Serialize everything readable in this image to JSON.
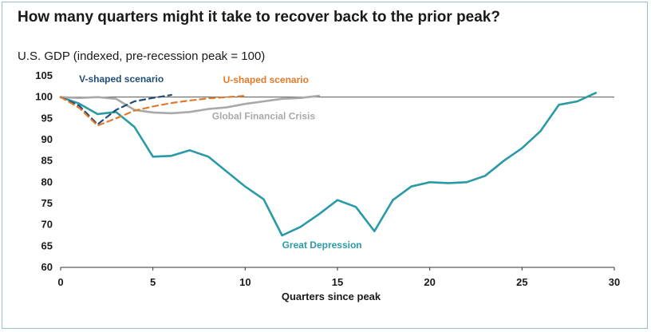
{
  "title": "How many quarters might it take to recover back to the prior peak?",
  "subtitle": "U.S. GDP (indexed, pre-recession peak = 100)",
  "chart_data": {
    "type": "line",
    "xlabel": "Quarters since peak",
    "ylabel": "",
    "xlim": [
      0,
      30
    ],
    "ylim": [
      60,
      105
    ],
    "x_ticks": [
      0,
      5,
      10,
      15,
      20,
      25,
      30
    ],
    "y_ticks": [
      60,
      65,
      70,
      75,
      80,
      85,
      90,
      95,
      100,
      105
    ],
    "reference_line": 100,
    "grid": false,
    "series": [
      {
        "name": "Great Depression",
        "color": "#2a9aa6",
        "style": "solid",
        "x": [
          0,
          1,
          2,
          3,
          4,
          5,
          6,
          7,
          8,
          9,
          10,
          11,
          12,
          13,
          14,
          15,
          16,
          17,
          18,
          19,
          20,
          21,
          22,
          23,
          24,
          25,
          26,
          27,
          28,
          29
        ],
        "y": [
          100,
          98.5,
          96,
          96.5,
          93,
          86,
          86.2,
          87.5,
          86,
          82.5,
          79,
          76,
          67.5,
          69.5,
          72.5,
          75.8,
          74.2,
          68.5,
          75.8,
          79,
          80,
          79.8,
          80,
          81.5,
          85,
          88,
          92,
          98.2,
          99,
          101
        ]
      },
      {
        "name": "Global Financial Crisis",
        "color": "#a9a9a9",
        "style": "solid",
        "x": [
          0,
          1,
          2,
          3,
          4,
          5,
          6,
          7,
          8,
          9,
          10,
          11,
          12,
          13,
          14
        ],
        "y": [
          100,
          99.8,
          100,
          99.6,
          97,
          96.4,
          96.2,
          96.5,
          97.2,
          97.6,
          98.4,
          99,
          99.6,
          99.8,
          100.3
        ]
      },
      {
        "name": "V-shaped scenario",
        "color": "#1f4e79",
        "style": "dashed",
        "x": [
          0,
          1,
          2,
          3,
          4,
          5,
          6
        ],
        "y": [
          100,
          98,
          93.6,
          97,
          99,
          99.8,
          100.5
        ]
      },
      {
        "name": "U-shaped scenario",
        "color": "#e07a2a",
        "style": "dashed",
        "x": [
          0,
          1,
          2,
          3,
          4,
          5,
          6,
          7,
          8,
          9,
          10
        ],
        "y": [
          100,
          97.5,
          93.3,
          95,
          96.8,
          97.8,
          98.6,
          99.2,
          99.7,
          100,
          100.3
        ]
      }
    ],
    "annotations": [
      {
        "text": "V-shaped scenario",
        "color": "#1f4e79",
        "x": 1,
        "y": 103.5
      },
      {
        "text": "U-shaped scenario",
        "color": "#e07a2a",
        "x": 8.8,
        "y": 103.3
      },
      {
        "text": "Global Financial Crisis",
        "color": "#a9a9a9",
        "x": 8.2,
        "y": 94.8
      },
      {
        "text": "Great Depression",
        "color": "#2a9aa6",
        "x": 12,
        "y": 64.5
      }
    ]
  }
}
